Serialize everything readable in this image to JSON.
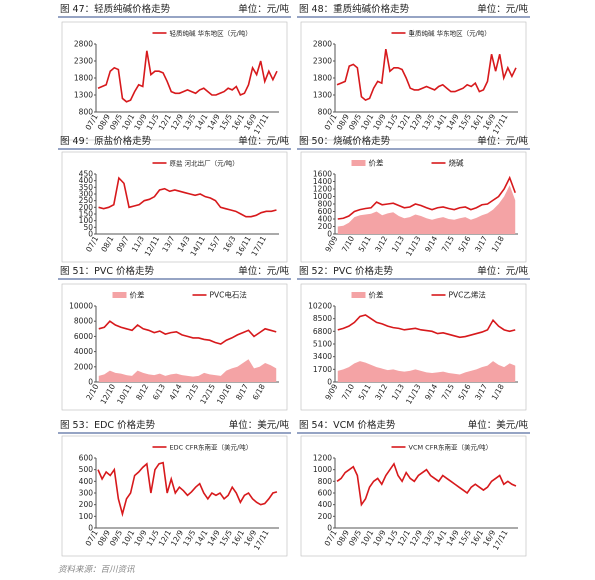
{
  "chart_data": [
    {
      "type": "line",
      "caption": "图 47：轻质纯碱价格走势",
      "unit": "单位：元/吨",
      "ylim": [
        800,
        2800
      ],
      "yticks": [
        800,
        1300,
        1800,
        2300,
        2800
      ],
      "categories": [
        "07/1",
        null,
        null,
        "08/9",
        null,
        null,
        "09/5",
        null,
        null,
        "10/1",
        null,
        null,
        "10/9",
        null,
        null,
        "11/5",
        null,
        null,
        "12/1",
        null,
        null,
        "12/9",
        null,
        null,
        "13/5",
        null,
        null,
        "14/1",
        null,
        null,
        "14/9",
        null,
        null,
        "15/5",
        null,
        null,
        "16/1",
        null,
        null,
        "16/9",
        null,
        null,
        "17/11",
        null,
        null
      ],
      "series": [
        {
          "name": "轻质纯碱 华东地区（元/吨）",
          "type": "line",
          "color": "#d7191c",
          "values": [
            1500,
            1550,
            1600,
            2000,
            2100,
            2050,
            1200,
            1100,
            1150,
            1400,
            1600,
            1550,
            2600,
            1900,
            2000,
            2000,
            1950,
            1700,
            1400,
            1350,
            1350,
            1400,
            1450,
            1400,
            1350,
            1450,
            1500,
            1400,
            1300,
            1300,
            1350,
            1400,
            1500,
            1450,
            1550,
            1300,
            1350,
            1600,
            2100,
            1900,
            2300,
            1700,
            2000,
            1750,
            2000
          ]
        }
      ]
    },
    {
      "type": "line",
      "caption": "图 48：重质纯碱价格走势",
      "unit": "单位：元/吨",
      "ylim": [
        800,
        2800
      ],
      "yticks": [
        800,
        1300,
        1800,
        2300,
        2800
      ],
      "categories": [
        "07/1",
        null,
        null,
        "08/9",
        null,
        null,
        "09/5",
        null,
        null,
        "10/1",
        null,
        null,
        "10/9",
        null,
        null,
        "11/5",
        null,
        null,
        "12/1",
        null,
        null,
        "12/9",
        null,
        null,
        "13/5",
        null,
        null,
        "14/1",
        null,
        null,
        "14/9",
        null,
        null,
        "15/5",
        null,
        null,
        "16/1",
        null,
        null,
        "16/9",
        null,
        null,
        "17/11",
        null,
        null
      ],
      "series": [
        {
          "name": "重质纯碱 华东地区（元/吨）",
          "type": "line",
          "color": "#d7191c",
          "values": [
            1600,
            1650,
            1700,
            2150,
            2200,
            2100,
            1250,
            1150,
            1200,
            1500,
            1700,
            1650,
            2650,
            2000,
            2100,
            2100,
            2050,
            1800,
            1500,
            1450,
            1450,
            1500,
            1550,
            1500,
            1450,
            1550,
            1600,
            1500,
            1400,
            1400,
            1450,
            1500,
            1600,
            1550,
            1650,
            1400,
            1450,
            1700,
            2500,
            2000,
            2500,
            1800,
            2100,
            1850,
            2100
          ]
        }
      ]
    },
    {
      "type": "line",
      "caption": "图 49：原盐价格走势",
      "unit": "单位：元/吨",
      "ylim": [
        0,
        450
      ],
      "yticks": [
        0,
        50,
        100,
        150,
        200,
        250,
        300,
        350,
        400,
        450
      ],
      "categories": [
        "07/1",
        null,
        null,
        "08/1",
        null,
        null,
        "09/7",
        null,
        null,
        "11/3",
        null,
        null,
        "12/11",
        null,
        null,
        "13/7",
        null,
        null,
        "14/3",
        null,
        null,
        "14/11",
        null,
        null,
        "15/7",
        null,
        null,
        "16/3",
        null,
        null,
        "16/11",
        null,
        null,
        "17/11",
        null,
        null
      ],
      "series": [
        {
          "name": "原盐 河北出厂（元/吨）",
          "type": "line",
          "color": "#d7191c",
          "values": [
            200,
            190,
            200,
            220,
            420,
            380,
            200,
            210,
            220,
            250,
            260,
            280,
            330,
            340,
            320,
            330,
            320,
            310,
            300,
            290,
            300,
            280,
            270,
            250,
            200,
            190,
            180,
            170,
            150,
            130,
            130,
            140,
            160,
            170,
            170,
            180
          ]
        }
      ]
    },
    {
      "type": "line",
      "caption": "图 50：烧碱价格走势",
      "unit": "单位：元/吨",
      "ylim": [
        0,
        1600
      ],
      "yticks": [
        0,
        200,
        400,
        600,
        800,
        1000,
        1200,
        1400,
        1600
      ],
      "categories": [
        "9/09",
        null,
        null,
        "7/10",
        null,
        null,
        "5/11",
        null,
        null,
        "3/12",
        null,
        null,
        "1/13",
        null,
        null,
        "11/13",
        null,
        null,
        "9/14",
        null,
        null,
        "7/15",
        null,
        null,
        "5/16",
        null,
        null,
        "3/17",
        null,
        null,
        "1/18",
        null,
        null
      ],
      "series": [
        {
          "name": "价差",
          "type": "area",
          "color": "#f4a3a5",
          "values": [
            200,
            220,
            300,
            450,
            500,
            520,
            540,
            600,
            500,
            550,
            580,
            480,
            420,
            450,
            520,
            480,
            420,
            380,
            420,
            450,
            400,
            380,
            420,
            450,
            380,
            430,
            500,
            550,
            650,
            800,
            1000,
            1300,
            900
          ]
        },
        {
          "name": "烧碱",
          "type": "line",
          "color": "#d7191c",
          "values": [
            400,
            420,
            480,
            600,
            650,
            680,
            700,
            850,
            780,
            800,
            820,
            760,
            700,
            720,
            800,
            760,
            700,
            650,
            700,
            720,
            680,
            650,
            700,
            720,
            650,
            700,
            780,
            800,
            900,
            1000,
            1200,
            1500,
            1100
          ]
        }
      ]
    },
    {
      "type": "line",
      "caption": "图 51：PVC 价格走势",
      "unit": "单位：元/吨",
      "ylim": [
        0,
        10000
      ],
      "yticks": [
        0,
        2000,
        4000,
        6000,
        8000,
        10000
      ],
      "categories": [
        "2/10",
        null,
        null,
        "12/10",
        null,
        null,
        "10/11",
        null,
        null,
        "8/12",
        null,
        null,
        "6/13",
        null,
        null,
        "4/14",
        null,
        null,
        "2/15",
        null,
        null,
        "12/15",
        null,
        null,
        "10/16",
        null,
        null,
        "8/17",
        null,
        null,
        "6/18",
        null,
        null
      ],
      "series": [
        {
          "name": "价差",
          "type": "area",
          "color": "#f4a3a5",
          "values": [
            800,
            1000,
            1500,
            1200,
            1100,
            900,
            800,
            1500,
            1200,
            1000,
            900,
            1100,
            800,
            1000,
            1100,
            900,
            800,
            700,
            800,
            1200,
            1000,
            900,
            800,
            1500,
            1800,
            2000,
            2500,
            3000,
            1800,
            2000,
            2500,
            2200,
            1800
          ]
        },
        {
          "name": "PVC电石法",
          "type": "line",
          "color": "#d7191c",
          "values": [
            7000,
            7200,
            8000,
            7500,
            7200,
            7000,
            6800,
            7500,
            7000,
            6800,
            6500,
            6700,
            6300,
            6500,
            6600,
            6200,
            6000,
            5800,
            5800,
            5600,
            5500,
            5200,
            5000,
            5500,
            5800,
            6200,
            6500,
            6800,
            6000,
            6500,
            7000,
            6800,
            6600
          ]
        }
      ]
    },
    {
      "type": "line",
      "caption": "图 52：PVC 价格走势",
      "unit": "单位：元/吨",
      "ylim": [
        0,
        10200
      ],
      "yticks": [
        0,
        1700,
        3400,
        5100,
        6800,
        8500,
        10200
      ],
      "categories": [
        "9/09",
        null,
        null,
        "7/10",
        null,
        null,
        "5/11",
        null,
        null,
        "3/12",
        null,
        null,
        "1/13",
        null,
        null,
        "11/13",
        null,
        null,
        "9/14",
        null,
        null,
        "7/15",
        null,
        null,
        "5/16",
        null,
        null,
        "3/17",
        null,
        null,
        "1/18",
        null,
        null
      ],
      "series": [
        {
          "name": "价差",
          "type": "area",
          "color": "#f4a3a5",
          "values": [
            1500,
            1700,
            2000,
            2500,
            2800,
            2600,
            2300,
            2000,
            1800,
            1600,
            1700,
            1500,
            1400,
            1500,
            1700,
            1500,
            1300,
            1200,
            1300,
            1400,
            1200,
            1100,
            1000,
            1300,
            1500,
            1700,
            2000,
            2200,
            2800,
            2300,
            2000,
            2500,
            2200
          ]
        },
        {
          "name": "PVC乙烯法",
          "type": "line",
          "color": "#d7191c",
          "values": [
            7000,
            7200,
            7500,
            8000,
            8800,
            9000,
            8500,
            8000,
            7800,
            7500,
            7300,
            7200,
            7000,
            7100,
            7200,
            7000,
            6900,
            6800,
            6500,
            6600,
            6400,
            6200,
            6000,
            6100,
            6300,
            6500,
            6700,
            7000,
            8300,
            7500,
            7000,
            6800,
            7000
          ]
        }
      ]
    },
    {
      "type": "line",
      "caption": "图 53：EDC 价格走势",
      "unit": "单位：美元/吨",
      "ylim": [
        0,
        600
      ],
      "yticks": [
        0,
        100,
        200,
        300,
        400,
        500,
        600
      ],
      "categories": [
        "07/1",
        null,
        null,
        "08/9",
        null,
        null,
        "09/5",
        null,
        null,
        "10/1",
        null,
        null,
        "10/9",
        null,
        null,
        "11/5",
        null,
        null,
        "12/1",
        null,
        null,
        "12/9",
        null,
        null,
        "13/5",
        null,
        null,
        "14/1",
        null,
        null,
        "14/9",
        null,
        null,
        "15/5",
        null,
        null,
        "16/1",
        null,
        null,
        "16/9",
        null,
        null,
        "17/11",
        null,
        null
      ],
      "series": [
        {
          "name": "EDC CFR东南亚（美元/吨）",
          "type": "line",
          "color": "#d7191c",
          "values": [
            500,
            420,
            480,
            450,
            500,
            250,
            120,
            250,
            300,
            450,
            480,
            520,
            550,
            300,
            500,
            550,
            560,
            300,
            420,
            300,
            350,
            320,
            280,
            310,
            350,
            380,
            300,
            250,
            300,
            280,
            300,
            250,
            280,
            350,
            300,
            220,
            280,
            300,
            250,
            220,
            200,
            210,
            250,
            300,
            310
          ]
        }
      ]
    },
    {
      "type": "line",
      "caption": "图 54：VCM 价格走势",
      "unit": "单位：美元/吨",
      "ylim": [
        0,
        1200
      ],
      "yticks": [
        0,
        200,
        400,
        600,
        800,
        1000,
        1200
      ],
      "categories": [
        "07/1",
        null,
        null,
        "08/9",
        null,
        null,
        "09/5",
        null,
        null,
        "10/1",
        null,
        null,
        "10/9",
        null,
        null,
        "11/5",
        null,
        null,
        "12/1",
        null,
        null,
        "12/9",
        null,
        null,
        "13/5",
        null,
        null,
        "14/1",
        null,
        null,
        "14/9",
        null,
        null,
        "15/5",
        null,
        null,
        "16/1",
        null,
        null,
        "16/9",
        null,
        null,
        "17/11",
        null,
        null
      ],
      "series": [
        {
          "name": "VCM CFR东南亚（美元/吨）",
          "type": "line",
          "color": "#d7191c",
          "values": [
            800,
            850,
            950,
            1000,
            1050,
            900,
            400,
            500,
            700,
            800,
            850,
            750,
            900,
            1000,
            1100,
            900,
            800,
            950,
            850,
            800,
            900,
            950,
            1000,
            900,
            850,
            800,
            900,
            850,
            800,
            750,
            700,
            650,
            600,
            700,
            750,
            700,
            650,
            700,
            800,
            850,
            900,
            750,
            800,
            750,
            720
          ]
        }
      ]
    }
  ],
  "source": "资料来源：百川资讯"
}
